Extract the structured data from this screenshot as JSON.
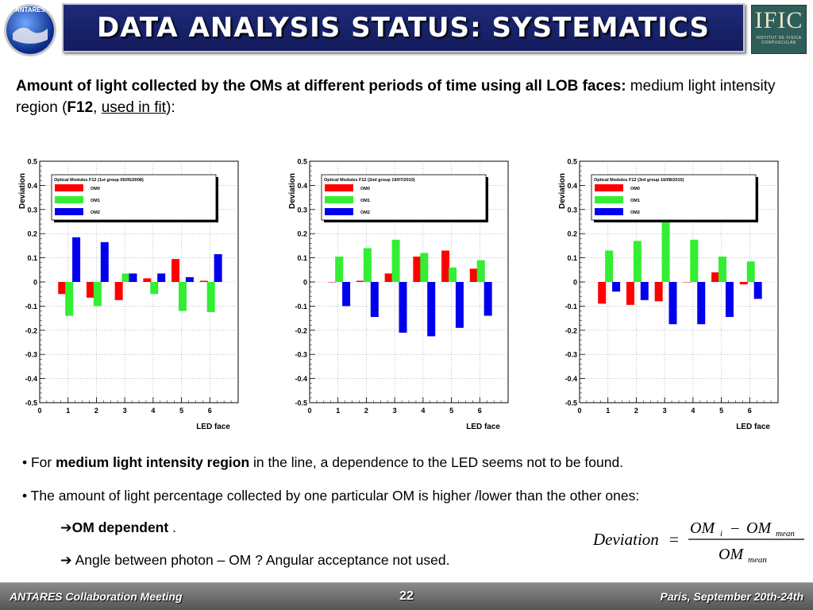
{
  "header": {
    "title": "DATA ANALYSIS STATUS: SYSTEMATICS",
    "left_logo_text": "ANTARES",
    "right_logo_big": "IFIC",
    "right_logo_small_1": "INSTITUT DE FISICA",
    "right_logo_small_2": "CORPUSCULAR"
  },
  "intro": {
    "bold": "Amount of light collected by the OMs at different periods of time using all LOB faces:",
    "normal1": " medium light intensity region (",
    "bold2": "F12",
    "comma": ", ",
    "underlined": "used in fit",
    "close": "):"
  },
  "bullets": {
    "b1_pre": "• For ",
    "b1_bold": "medium light intensity region",
    "b1_post": " in the line, a dependence to the LED seems not to be found.",
    "b2": "• The amount of light percentage collected by one particular OM is higher /lower than the other ones:",
    "b3_arrow": "➔",
    "b3_bold": "OM dependent",
    "b3_post": " .",
    "b4_arrow": "➔",
    "b4_text": " Angle between photon – OM ? Angular acceptance not used."
  },
  "formula": {
    "lhs": "Deviation",
    "eq": "=",
    "num_a": "OM",
    "num_a_sub": "i",
    "minus": "–",
    "num_b": "OM",
    "num_b_sub": "mean",
    "den": "OM",
    "den_sub": "mean"
  },
  "footer": {
    "left": "ANTARES Collaboration Meeting",
    "page": "22",
    "right": "Paris, September 20th-24th"
  },
  "colors": {
    "om0": "#ff0000",
    "om1": "#33ee33",
    "om2": "#0000ee",
    "title_bg": "#1a2570",
    "footer_bg": "#6e6e6e"
  },
  "chart_data": [
    {
      "type": "bar",
      "legend_title": "Optical Modules F12 (1st group 05/05/2008)",
      "xlabel": "LED face",
      "ylabel": "Deviation",
      "xlim": [
        0,
        7
      ],
      "ylim": [
        -0.5,
        0.5
      ],
      "x_ticks": [
        "0",
        "1",
        "2",
        "3",
        "4",
        "5",
        "6"
      ],
      "y_ticks": [
        "-0.5",
        "-0.4",
        "-0.3",
        "-0.2",
        "-0.1",
        "0",
        "0.1",
        "0.2",
        "0.3",
        "0.4",
        "0.5"
      ],
      "categories": [
        1,
        2,
        3,
        4,
        5,
        6
      ],
      "legend_position": "top-left",
      "series": [
        {
          "name": "OM0",
          "values": [
            -0.05,
            -0.065,
            -0.075,
            0.015,
            0.095,
            0.005
          ]
        },
        {
          "name": "OM1",
          "values": [
            -0.14,
            -0.1,
            0.035,
            -0.05,
            -0.12,
            -0.125
          ]
        },
        {
          "name": "OM2",
          "values": [
            0.185,
            0.165,
            0.035,
            0.035,
            0.02,
            0.115
          ]
        }
      ]
    },
    {
      "type": "bar",
      "legend_title": "Optical Modules F12 (2nd group 19/07/2010)",
      "xlabel": "LED face",
      "ylabel": "Deviation",
      "xlim": [
        0,
        7
      ],
      "ylim": [
        -0.5,
        0.5
      ],
      "x_ticks": [
        "0",
        "1",
        "2",
        "3",
        "4",
        "5",
        "6"
      ],
      "y_ticks": [
        "-0.5",
        "-0.4",
        "-0.3",
        "-0.2",
        "-0.1",
        "0",
        "0.1",
        "0.2",
        "0.3",
        "0.4",
        "0.5"
      ],
      "categories": [
        1,
        2,
        3,
        4,
        5,
        6
      ],
      "legend_position": "top-left",
      "series": [
        {
          "name": "OM0",
          "values": [
            0.0,
            0.005,
            0.035,
            0.105,
            0.13,
            0.055
          ]
        },
        {
          "name": "OM1",
          "values": [
            0.105,
            0.14,
            0.175,
            0.12,
            0.06,
            0.09
          ]
        },
        {
          "name": "OM2",
          "values": [
            -0.1,
            -0.145,
            -0.21,
            -0.225,
            -0.19,
            -0.14
          ]
        }
      ]
    },
    {
      "type": "bar",
      "legend_title": "Optical Modules F12 (3rd group 16/08/2010)",
      "xlabel": "LED face",
      "ylabel": "Deviation",
      "xlim": [
        0,
        7
      ],
      "ylim": [
        -0.5,
        0.5
      ],
      "x_ticks": [
        "0",
        "1",
        "2",
        "3",
        "4",
        "5",
        "6"
      ],
      "y_ticks": [
        "-0.5",
        "-0.4",
        "-0.3",
        "-0.2",
        "-0.1",
        "0",
        "0.1",
        "0.2",
        "0.3",
        "0.4",
        "0.5"
      ],
      "categories": [
        1,
        2,
        3,
        4,
        5,
        6
      ],
      "legend_position": "top-left",
      "series": [
        {
          "name": "OM0",
          "values": [
            -0.09,
            -0.095,
            -0.08,
            0.0,
            0.04,
            -0.01
          ]
        },
        {
          "name": "OM1",
          "values": [
            0.13,
            0.17,
            0.25,
            0.175,
            0.105,
            0.085
          ]
        },
        {
          "name": "OM2",
          "values": [
            -0.04,
            -0.075,
            -0.175,
            -0.175,
            -0.145,
            -0.07
          ]
        }
      ]
    }
  ]
}
